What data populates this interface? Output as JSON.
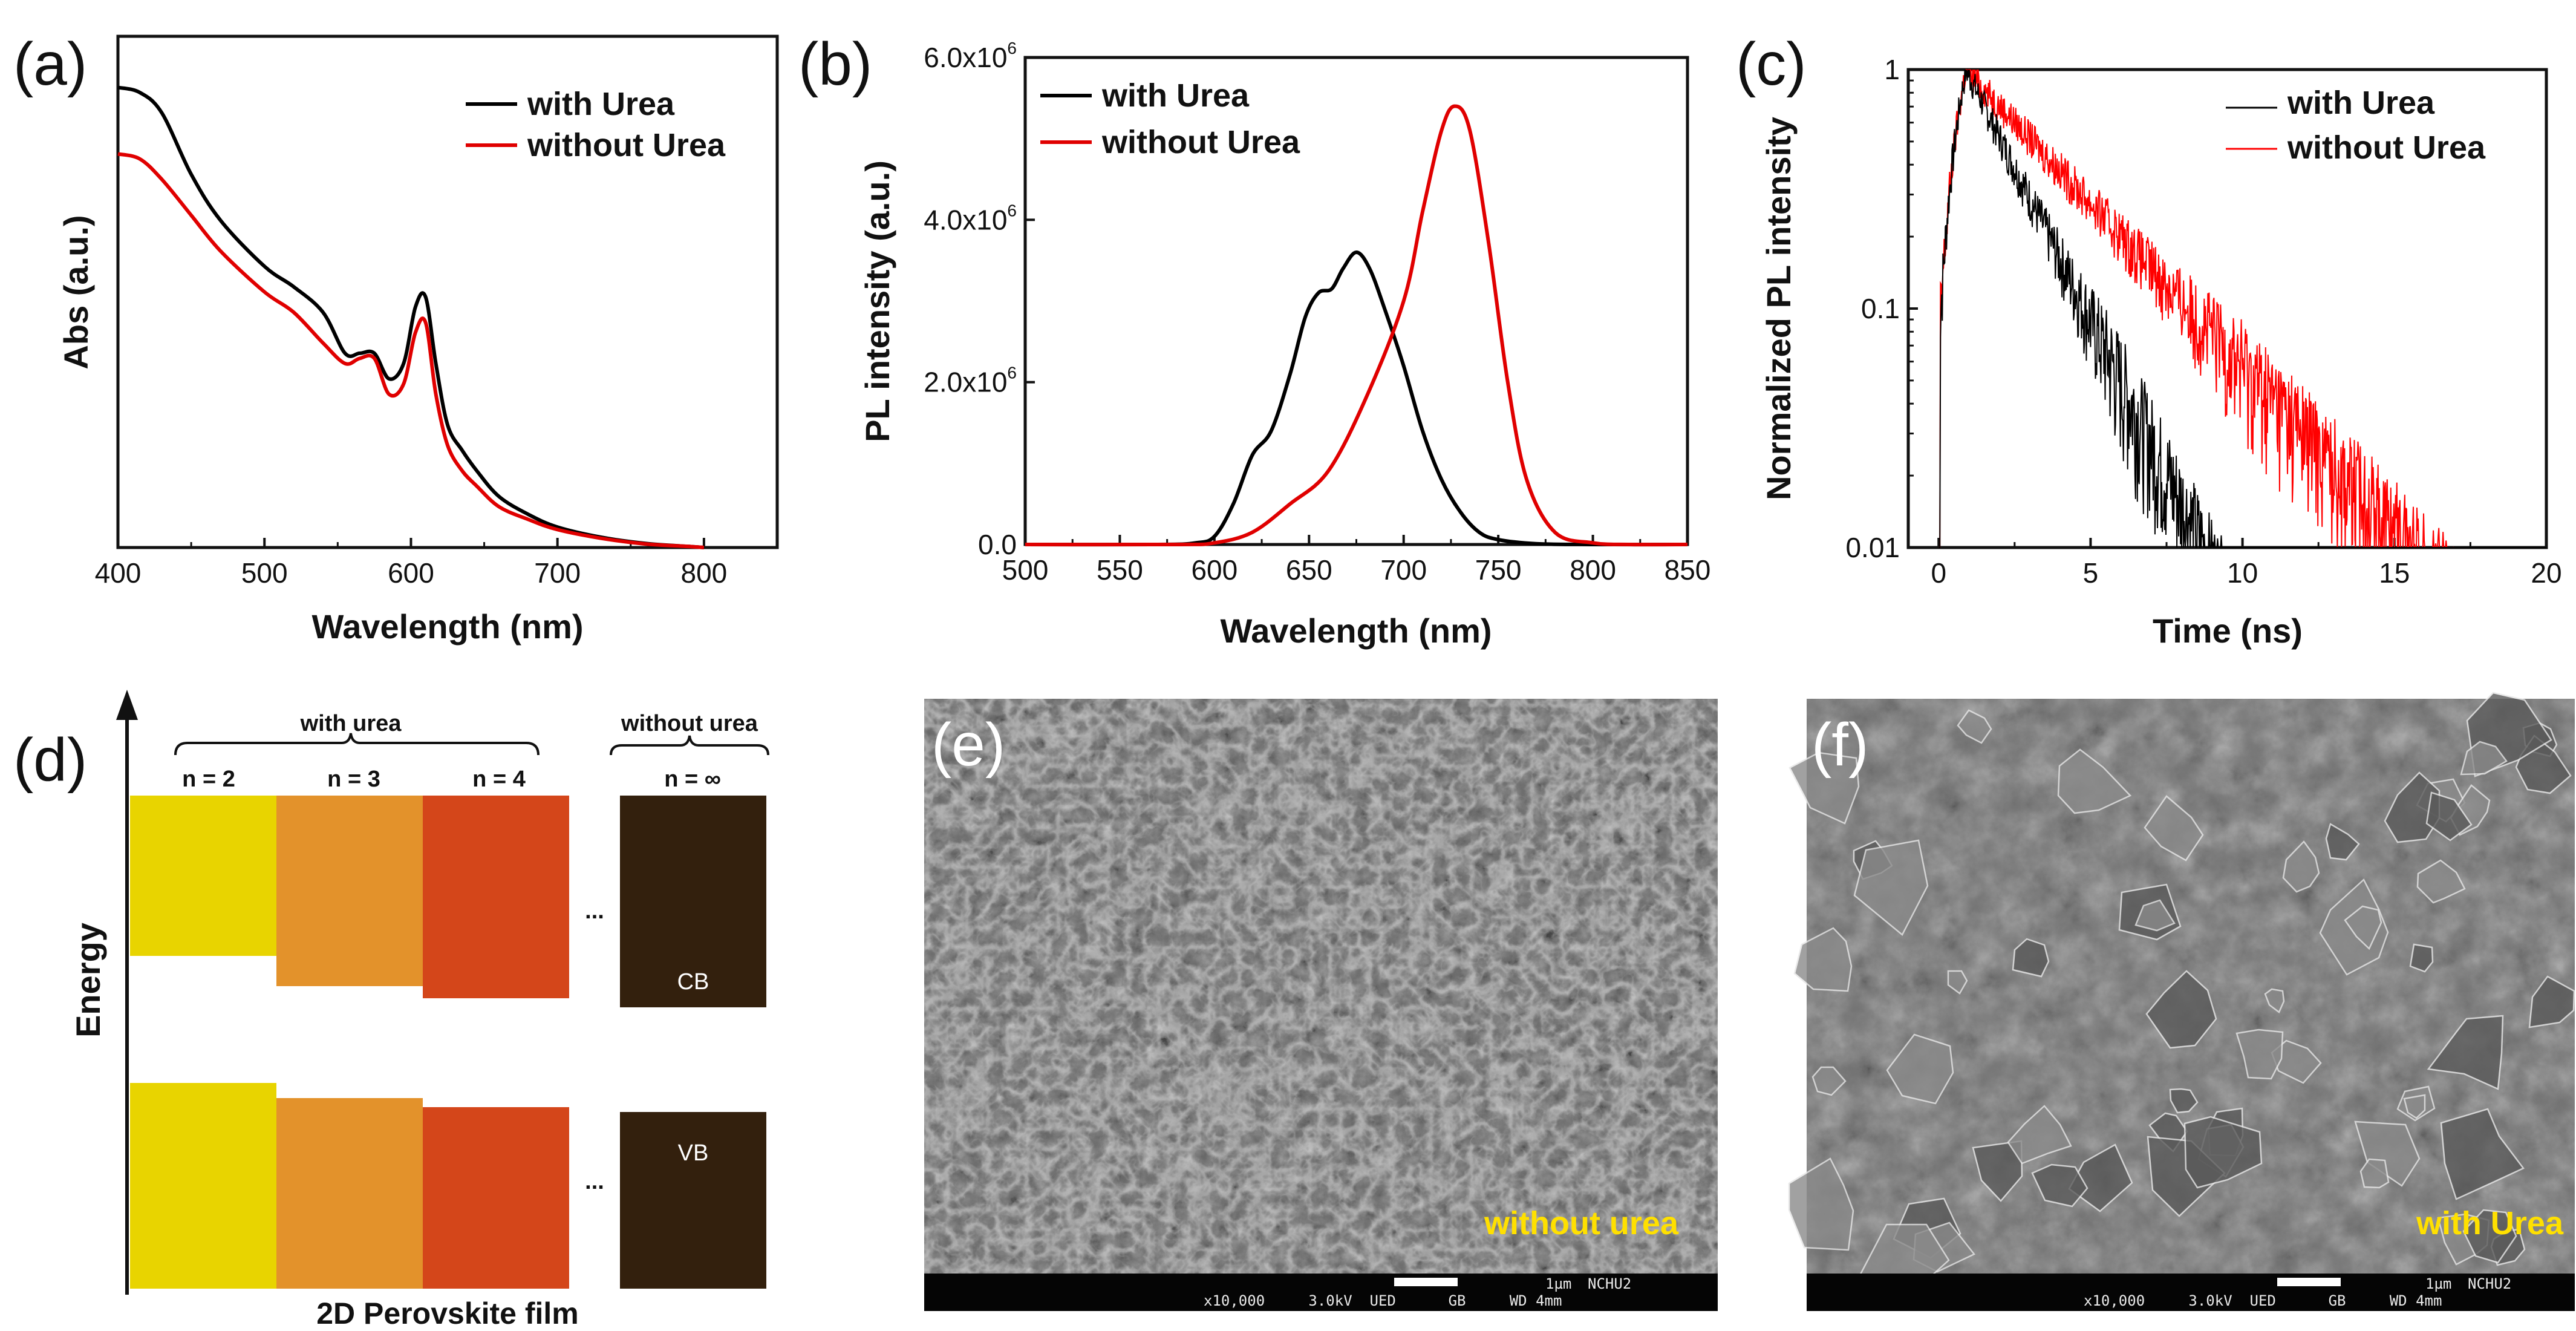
{
  "chart_data": [
    {
      "panel": "(a)",
      "type": "line",
      "xlabel": "Wavelength (nm)",
      "ylabel": "Abs (a.u.)",
      "xlim": [
        400,
        850
      ],
      "ylim": [
        0,
        1.0
      ],
      "xticks": [
        400,
        500,
        600,
        700,
        800
      ],
      "xtick_labels": [
        "400",
        "500",
        "600",
        "700",
        "800"
      ],
      "series": [
        {
          "name": "with Urea",
          "color": "#000000",
          "x": [
            400,
            415,
            430,
            450,
            470,
            500,
            520,
            540,
            555,
            565,
            575,
            585,
            595,
            603,
            610,
            617,
            625,
            635,
            645,
            660,
            680,
            700,
            730,
            760,
            790,
            800
          ],
          "y": [
            0.9,
            0.89,
            0.85,
            0.73,
            0.64,
            0.55,
            0.51,
            0.46,
            0.38,
            0.38,
            0.38,
            0.33,
            0.36,
            0.47,
            0.49,
            0.36,
            0.24,
            0.19,
            0.15,
            0.1,
            0.065,
            0.04,
            0.02,
            0.008,
            0.002,
            0.0
          ]
        },
        {
          "name": "without Urea",
          "color": "#e00000",
          "x": [
            400,
            415,
            430,
            450,
            470,
            500,
            520,
            540,
            555,
            565,
            575,
            585,
            595,
            603,
            610,
            617,
            625,
            635,
            645,
            660,
            680,
            700,
            730,
            760,
            790,
            800
          ],
          "y": [
            0.77,
            0.76,
            0.72,
            0.65,
            0.58,
            0.5,
            0.46,
            0.4,
            0.36,
            0.37,
            0.37,
            0.3,
            0.32,
            0.42,
            0.44,
            0.3,
            0.2,
            0.15,
            0.12,
            0.08,
            0.055,
            0.035,
            0.018,
            0.007,
            0.002,
            0.0
          ]
        }
      ]
    },
    {
      "panel": "(b)",
      "type": "line",
      "xlabel": "Wavelength (nm)",
      "ylabel": "PL intensity (a.u.)",
      "xlim": [
        500,
        850
      ],
      "ylim": [
        0,
        6000000
      ],
      "xticks": [
        500,
        550,
        600,
        650,
        700,
        750,
        800,
        850
      ],
      "xtick_labels": [
        "500",
        "550",
        "600",
        "650",
        "700",
        "750",
        "800",
        "850"
      ],
      "yticks": [
        0,
        2000000,
        4000000,
        6000000
      ],
      "ytick_labels": [
        "0.0",
        "2.0x10",
        "4.0x10",
        "6.0x10"
      ],
      "ytick_exp": "6",
      "series": [
        {
          "name": "with Urea",
          "color": "#000000",
          "x": [
            500,
            570,
            590,
            600,
            610,
            620,
            630,
            640,
            648,
            655,
            662,
            668,
            675,
            682,
            690,
            700,
            710,
            720,
            730,
            740,
            750,
            770,
            800,
            850
          ],
          "y": [
            0,
            0,
            20000,
            100000,
            500000,
            1100000,
            1400000,
            2100000,
            2800000,
            3100000,
            3150000,
            3400000,
            3600000,
            3400000,
            2900000,
            2200000,
            1400000,
            800000,
            400000,
            150000,
            60000,
            10000,
            0,
            0
          ]
        },
        {
          "name": "without Urea",
          "color": "#e00000",
          "x": [
            500,
            580,
            600,
            620,
            640,
            660,
            680,
            700,
            710,
            720,
            727,
            735,
            745,
            755,
            765,
            780,
            800,
            820,
            850
          ],
          "y": [
            0,
            0,
            20000,
            150000,
            500000,
            900000,
            1800000,
            3000000,
            4100000,
            5100000,
            5400000,
            5100000,
            3700000,
            2000000,
            800000,
            150000,
            20000,
            0,
            0
          ]
        }
      ]
    },
    {
      "panel": "(c)",
      "type": "line",
      "xlabel": "Time (ns)",
      "ylabel": "Normalized PL intensity",
      "yscale": "log",
      "xlim": [
        -1,
        20
      ],
      "ylim": [
        0.01,
        1
      ],
      "xticks": [
        0,
        5,
        10,
        15,
        20
      ],
      "xtick_labels": [
        "0",
        "5",
        "10",
        "15",
        "20"
      ],
      "yticks": [
        0.01,
        0.1,
        1
      ],
      "ytick_labels": [
        "0.01",
        "0.1",
        "1"
      ],
      "series": [
        {
          "name": "with Urea",
          "color": "#000000",
          "peak_time_ns": 0.9,
          "decay_time_ns": 1.7,
          "noise_floor": 0.01
        },
        {
          "name": "without Urea",
          "color": "#ff0000",
          "peak_time_ns": 0.9,
          "decay_time_ns": 3.2,
          "noise_floor": 0.01
        }
      ]
    }
  ],
  "panels": {
    "a": {
      "label": "(a)"
    },
    "b": {
      "label": "(b)"
    },
    "c": {
      "label": "(c)"
    },
    "d": {
      "label": "(d)",
      "axis_label": "Energy",
      "footer": "2D Perovskite film",
      "group_with": "with urea",
      "group_without": "without urea",
      "columns": [
        {
          "n_label": "n = 2",
          "color": "#e8d400"
        },
        {
          "n_label": "n = 3",
          "color": "#e3922b"
        },
        {
          "n_label": "n = 4",
          "color": "#d4461a"
        },
        {
          "n_label": "n = ∞",
          "color": "#33200d"
        }
      ],
      "ellipsis": "...",
      "cb_label": "CB",
      "vb_label": "VB"
    },
    "e": {
      "label": "(e)",
      "caption": "without urea",
      "info": "x10,000     3.0kV  UED      GB     WD 4mm",
      "scale_label": "1µm",
      "instrument": "NCHU2"
    },
    "f": {
      "label": "(f)",
      "caption": "with Urea",
      "info": "x10,000     3.0kV  UED      GB     WD 4mm",
      "scale_label": "1µm",
      "instrument": "NCHU2"
    }
  },
  "colors": {
    "with": "#000000",
    "without": "#e00000",
    "sem_caption": "#ffe000"
  }
}
